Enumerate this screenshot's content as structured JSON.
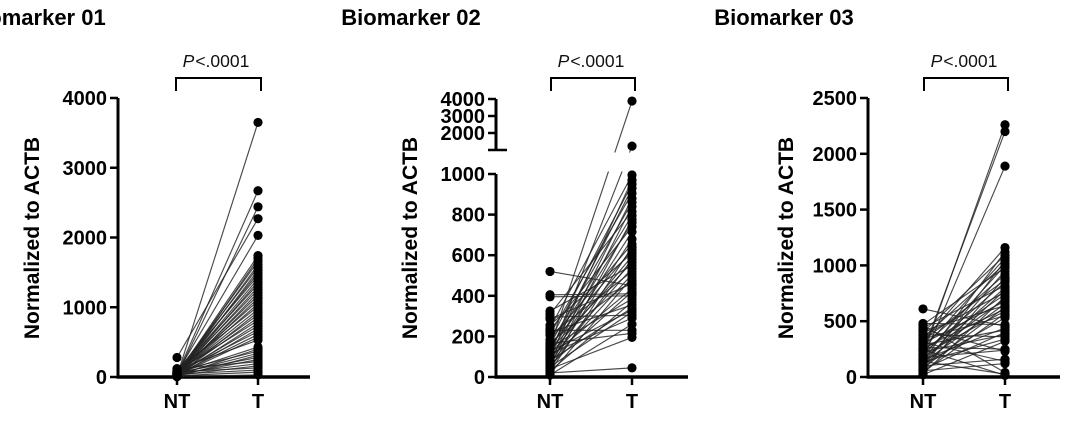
{
  "page": {
    "background": "#ffffff"
  },
  "chart_data": [
    {
      "type": "line",
      "subtype": "paired-before-after",
      "title": "Biomarker 01",
      "p_label": "P<.0001",
      "p_label_italic_part": "P",
      "p_label_rest": "<.0001",
      "ylabel": "Normalized to ACTB",
      "categories": [
        "NT",
        "T"
      ],
      "yticks": [
        0,
        1000,
        2000,
        3000,
        4000
      ],
      "ylim": [
        0,
        4000
      ],
      "grid": false,
      "legend": "none",
      "point_color": "#000000",
      "line_color": "#222222",
      "pairs": [
        [
          15,
          3650
        ],
        [
          40,
          2670
        ],
        [
          25,
          2440
        ],
        [
          280,
          2270
        ],
        [
          60,
          2030
        ],
        [
          35,
          1740
        ],
        [
          10,
          1700
        ],
        [
          55,
          1660
        ],
        [
          20,
          1610
        ],
        [
          75,
          1570
        ],
        [
          5,
          1530
        ],
        [
          45,
          1490
        ],
        [
          90,
          1450
        ],
        [
          30,
          1410
        ],
        [
          12,
          1370
        ],
        [
          65,
          1330
        ],
        [
          22,
          1290
        ],
        [
          50,
          1250
        ],
        [
          8,
          1210
        ],
        [
          38,
          1170
        ],
        [
          18,
          1130
        ],
        [
          70,
          1090
        ],
        [
          28,
          1050
        ],
        [
          95,
          1010
        ],
        [
          42,
          970
        ],
        [
          14,
          930
        ],
        [
          58,
          890
        ],
        [
          33,
          850
        ],
        [
          80,
          810
        ],
        [
          24,
          770
        ],
        [
          48,
          730
        ],
        [
          16,
          690
        ],
        [
          68,
          650
        ],
        [
          36,
          610
        ],
        [
          26,
          570
        ],
        [
          110,
          530
        ],
        [
          52,
          430
        ],
        [
          20,
          400
        ],
        [
          85,
          370
        ],
        [
          44,
          340
        ],
        [
          10,
          310
        ],
        [
          62,
          280
        ],
        [
          32,
          250
        ],
        [
          120,
          220
        ],
        [
          54,
          190
        ],
        [
          28,
          160
        ],
        [
          74,
          130
        ],
        [
          40,
          100
        ],
        [
          18,
          70
        ],
        [
          6,
          30
        ]
      ]
    },
    {
      "type": "line",
      "subtype": "paired-before-after",
      "title": "Biomarker 02",
      "p_label": "P<.0001",
      "p_label_italic_part": "P",
      "p_label_rest": "<.0001",
      "ylabel": "Normalized to ACTB",
      "categories": [
        "NT",
        "T"
      ],
      "axis_break": true,
      "yticks_lower": [
        0,
        200,
        400,
        600,
        800,
        1000
      ],
      "yticks_upper": [
        2000,
        3000,
        4000
      ],
      "ylim_lower": [
        0,
        1000
      ],
      "ylim_upper": [
        1000,
        4000
      ],
      "grid": false,
      "legend": "none",
      "point_color": "#000000",
      "line_color": "#222222",
      "pairs": [
        [
          150,
          3880
        ],
        [
          105,
          1230
        ],
        [
          240,
          995
        ],
        [
          95,
          970
        ],
        [
          180,
          950
        ],
        [
          130,
          930
        ],
        [
          210,
          905
        ],
        [
          75,
          880
        ],
        [
          160,
          860
        ],
        [
          55,
          840
        ],
        [
          310,
          815
        ],
        [
          140,
          795
        ],
        [
          35,
          775
        ],
        [
          120,
          760
        ],
        [
          230,
          740
        ],
        [
          85,
          715
        ],
        [
          65,
          680
        ],
        [
          185,
          655
        ],
        [
          25,
          640
        ],
        [
          155,
          625
        ],
        [
          255,
          610
        ],
        [
          110,
          595
        ],
        [
          45,
          580
        ],
        [
          135,
          565
        ],
        [
          325,
          550
        ],
        [
          90,
          535
        ],
        [
          205,
          520
        ],
        [
          70,
          505
        ],
        [
          15,
          490
        ],
        [
          170,
          475
        ],
        [
          285,
          460
        ],
        [
          520,
          450
        ],
        [
          100,
          435
        ],
        [
          60,
          420
        ],
        [
          405,
          410
        ],
        [
          395,
          400
        ],
        [
          145,
          385
        ],
        [
          30,
          370
        ],
        [
          220,
          355
        ],
        [
          80,
          340
        ],
        [
          125,
          330
        ],
        [
          50,
          320
        ],
        [
          295,
          305
        ],
        [
          115,
          290
        ],
        [
          10,
          260
        ],
        [
          230,
          230
        ],
        [
          165,
          215
        ],
        [
          40,
          195
        ],
        [
          20,
          45
        ]
      ]
    },
    {
      "type": "line",
      "subtype": "paired-before-after",
      "title": "Biomarker 03",
      "p_label": "P<.0001",
      "p_label_italic_part": "P",
      "p_label_rest": "<.0001",
      "ylabel": "Normalized to ACTB",
      "categories": [
        "NT",
        "T"
      ],
      "yticks": [
        0,
        500,
        1000,
        1500,
        2000,
        2500
      ],
      "ylim": [
        0,
        2500
      ],
      "grid": false,
      "legend": "none",
      "point_color": "#000000",
      "line_color": "#222222",
      "pairs": [
        [
          195,
          2260
        ],
        [
          230,
          2200
        ],
        [
          160,
          1890
        ],
        [
          320,
          1160
        ],
        [
          145,
          1120
        ],
        [
          400,
          1090
        ],
        [
          250,
          1065
        ],
        [
          90,
          1040
        ],
        [
          350,
          1015
        ],
        [
          185,
          1000
        ],
        [
          470,
          980
        ],
        [
          120,
          950
        ],
        [
          280,
          920
        ],
        [
          60,
          890
        ],
        [
          330,
          870
        ],
        [
          210,
          850
        ],
        [
          440,
          820
        ],
        [
          150,
          800
        ],
        [
          95,
          780
        ],
        [
          370,
          760
        ],
        [
          240,
          740
        ],
        [
          30,
          720
        ],
        [
          170,
          700
        ],
        [
          300,
          680
        ],
        [
          130,
          655
        ],
        [
          415,
          640
        ],
        [
          80,
          625
        ],
        [
          260,
          610
        ],
        [
          200,
          590
        ],
        [
          45,
          570
        ],
        [
          340,
          550
        ],
        [
          110,
          530
        ],
        [
          610,
          455
        ],
        [
          480,
          470
        ],
        [
          155,
          440
        ],
        [
          290,
          420
        ],
        [
          70,
          400
        ],
        [
          225,
          380
        ],
        [
          380,
          360
        ],
        [
          135,
          340
        ],
        [
          20,
          320
        ],
        [
          265,
          250
        ],
        [
          175,
          240
        ],
        [
          430,
          230
        ],
        [
          100,
          160
        ],
        [
          310,
          140
        ],
        [
          55,
          120
        ],
        [
          460,
          40
        ],
        [
          140,
          25
        ],
        [
          245,
          15
        ]
      ]
    }
  ]
}
